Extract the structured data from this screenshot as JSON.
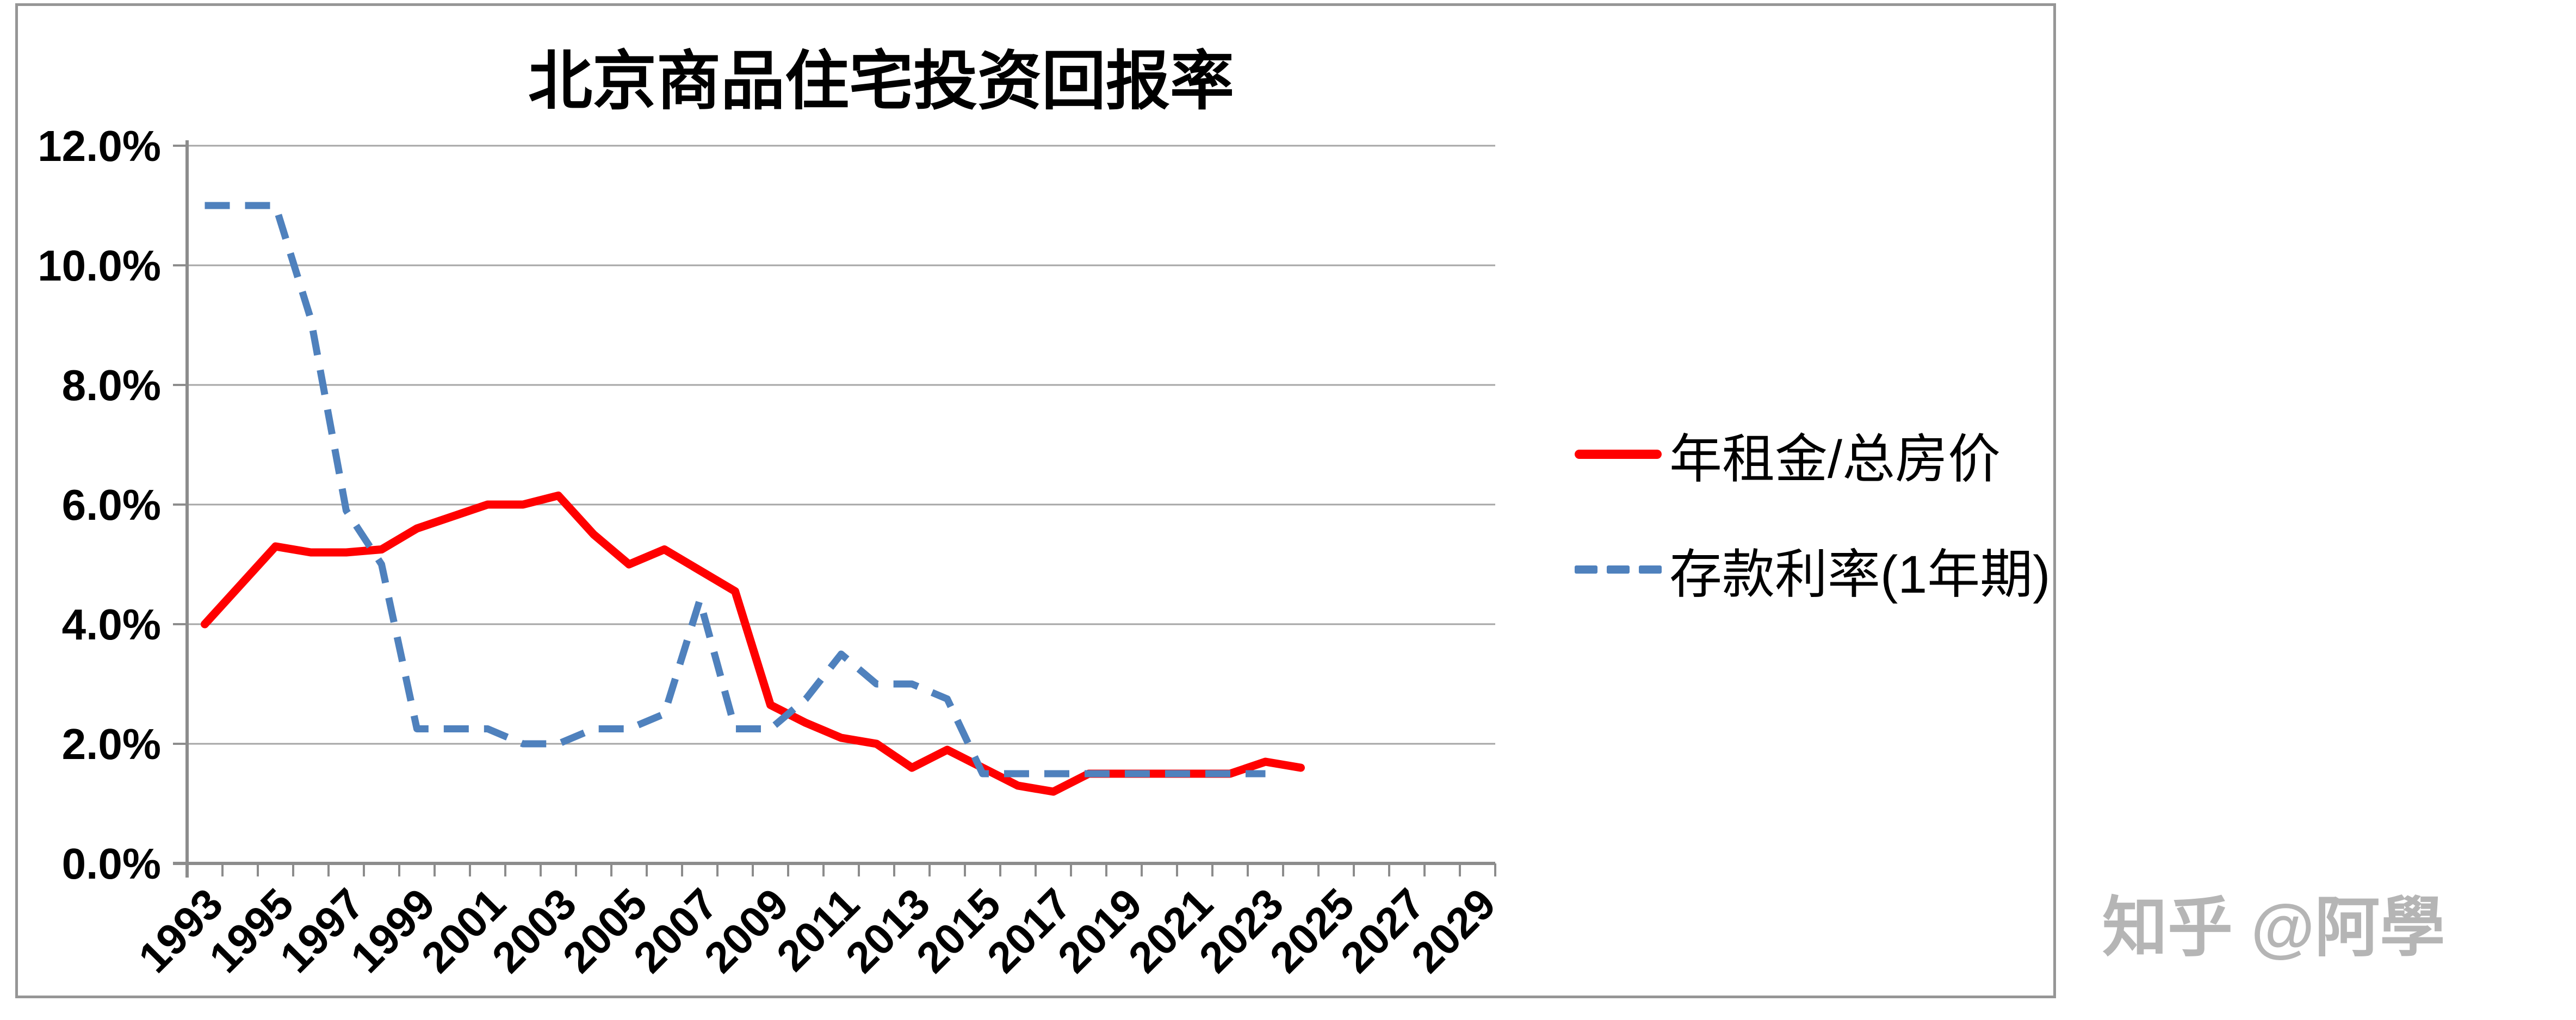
{
  "chart_data": {
    "type": "line",
    "title": "北京商品住宅投资回报率",
    "categories": [
      1993,
      1994,
      1995,
      1996,
      1997,
      1998,
      1999,
      2000,
      2001,
      2002,
      2003,
      2004,
      2005,
      2006,
      2007,
      2008,
      2009,
      2010,
      2011,
      2012,
      2013,
      2014,
      2015,
      2016,
      2017,
      2018,
      2019,
      2020,
      2021,
      2022,
      2023,
      2024,
      2025,
      2026,
      2027,
      2028,
      2029
    ],
    "x_tick_labels": [
      "1993",
      "1995",
      "1997",
      "1999",
      "2001",
      "2003",
      "2005",
      "2007",
      "2009",
      "2011",
      "2013",
      "2015",
      "2017",
      "2019",
      "2021",
      "2023",
      "2025",
      "2027",
      "2029"
    ],
    "y_tick_labels": [
      "0.0%",
      "2.0%",
      "4.0%",
      "6.0%",
      "8.0%",
      "10.0%",
      "12.0%"
    ],
    "ylim": [
      0,
      12
    ],
    "y_step": 2,
    "grid": true,
    "legend_position": "right",
    "xlabel": "",
    "ylabel": "",
    "series": [
      {
        "name": "年租金/总房价",
        "line_style": "solid",
        "color": "#ff0000",
        "values": [
          4.0,
          4.65,
          5.3,
          5.2,
          5.2,
          5.25,
          5.6,
          5.8,
          6.0,
          6.0,
          6.15,
          5.5,
          5.0,
          5.25,
          4.9,
          4.55,
          2.65,
          2.35,
          2.1,
          2.0,
          1.6,
          1.9,
          1.6,
          1.3,
          1.2,
          1.5,
          1.5,
          1.5,
          1.5,
          1.5,
          1.7,
          1.6,
          null,
          null,
          null,
          null,
          null
        ]
      },
      {
        "name": "存款利率(1年期)",
        "line_style": "dashed",
        "color": "#4f81bd",
        "values": [
          11.0,
          11.0,
          11.0,
          9.1,
          5.9,
          5.0,
          2.25,
          2.25,
          2.25,
          2.0,
          2.0,
          2.25,
          2.25,
          2.5,
          4.4,
          2.25,
          2.25,
          2.75,
          3.5,
          3.0,
          3.0,
          2.75,
          1.5,
          1.5,
          1.5,
          1.5,
          1.5,
          1.5,
          1.5,
          1.5,
          1.5,
          null,
          null,
          null,
          null,
          null,
          null
        ]
      }
    ],
    "style": {
      "grid_color": "#a6a6a6",
      "axis_color": "#8c8c8c",
      "frame_color": "#969696"
    }
  },
  "watermark": {
    "text": "知乎 @阿學",
    "color": "#b5b5b5"
  }
}
